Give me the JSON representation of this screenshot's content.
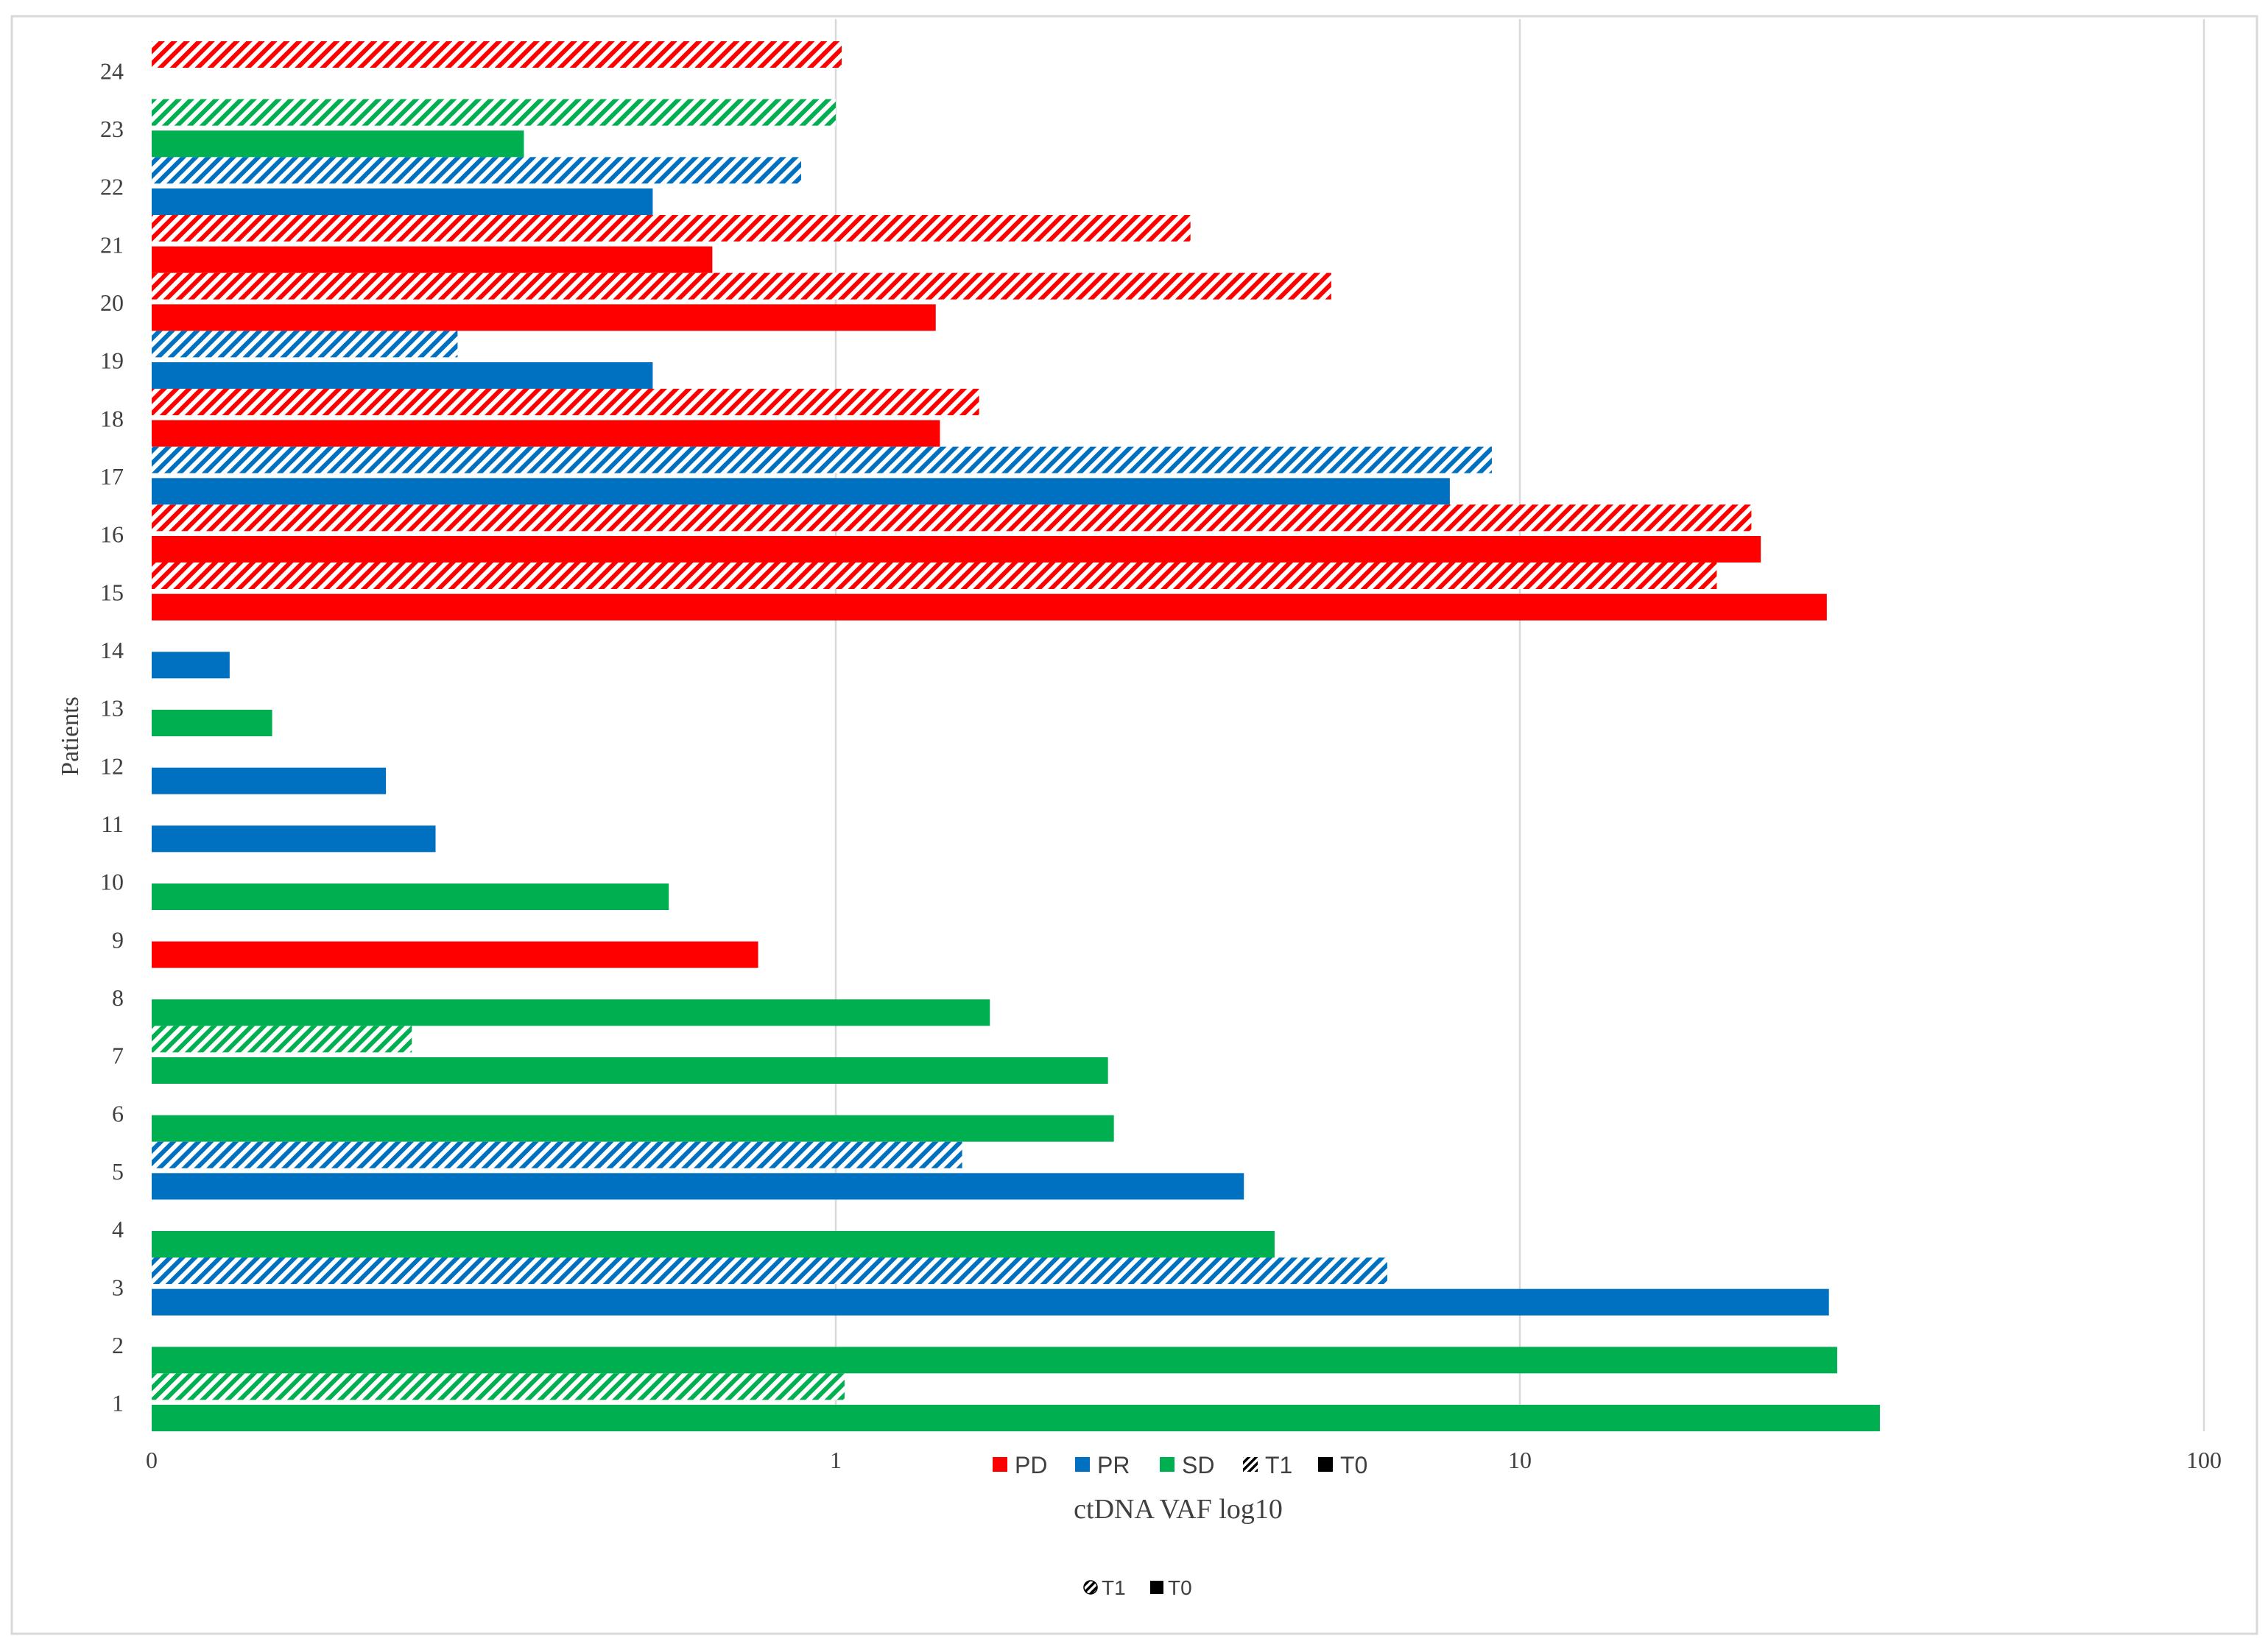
{
  "chart_data": {
    "type": "bar",
    "orientation": "horizontal",
    "xscale": "log10",
    "xlabel": "ctDNA VAF log10",
    "ylabel": "Patients",
    "xticks": [
      {
        "value": 0.1,
        "label": "0"
      },
      {
        "value": 1,
        "label": "1"
      },
      {
        "value": 10,
        "label": "10"
      },
      {
        "value": 100,
        "label": "100"
      }
    ],
    "xlim": [
      0.1,
      100
    ],
    "gridlines": true,
    "categories": [
      "1",
      "2",
      "3",
      "4",
      "5",
      "6",
      "7",
      "8",
      "9",
      "10",
      "11",
      "12",
      "13",
      "14",
      "15",
      "16",
      "17",
      "18",
      "19",
      "20",
      "21",
      "22",
      "23",
      "24"
    ],
    "colors": {
      "PD": "#ff0000",
      "PR": "#0070c0",
      "SD": "#00b050"
    },
    "bars": [
      {
        "patient": "1",
        "group": "SD",
        "timepoint": "T0",
        "value": 33.6
      },
      {
        "patient": "1",
        "group": "SD",
        "timepoint": "T1",
        "value": 1.03
      },
      {
        "patient": "2",
        "group": "SD",
        "timepoint": "T0",
        "value": 29.1
      },
      {
        "patient": "3",
        "group": "PR",
        "timepoint": "T0",
        "value": 28.3
      },
      {
        "patient": "3",
        "group": "PR",
        "timepoint": "T1",
        "value": 6.4
      },
      {
        "patient": "4",
        "group": "SD",
        "timepoint": "T0",
        "value": 4.38
      },
      {
        "patient": "5",
        "group": "PR",
        "timepoint": "T0",
        "value": 3.95
      },
      {
        "patient": "5",
        "group": "PR",
        "timepoint": "T1",
        "value": 1.53
      },
      {
        "patient": "6",
        "group": "SD",
        "timepoint": "T0",
        "value": 2.55
      },
      {
        "patient": "7",
        "group": "SD",
        "timepoint": "T0",
        "value": 2.5
      },
      {
        "patient": "7",
        "group": "SD",
        "timepoint": "T1",
        "value": 0.24
      },
      {
        "patient": "8",
        "group": "SD",
        "timepoint": "T0",
        "value": 1.68
      },
      {
        "patient": "9",
        "group": "PD",
        "timepoint": "T0",
        "value": 0.77
      },
      {
        "patient": "10",
        "group": "SD",
        "timepoint": "T0",
        "value": 0.57
      },
      {
        "patient": "11",
        "group": "PR",
        "timepoint": "T0",
        "value": 0.26
      },
      {
        "patient": "12",
        "group": "PR",
        "timepoint": "T0",
        "value": 0.22
      },
      {
        "patient": "13",
        "group": "SD",
        "timepoint": "T0",
        "value": 0.15
      },
      {
        "patient": "14",
        "group": "PR",
        "timepoint": "T0",
        "value": 0.13
      },
      {
        "patient": "15",
        "group": "PD",
        "timepoint": "T0",
        "value": 28.1
      },
      {
        "patient": "15",
        "group": "PD",
        "timepoint": "T1",
        "value": 19.4
      },
      {
        "patient": "16",
        "group": "PD",
        "timepoint": "T0",
        "value": 22.5
      },
      {
        "patient": "16",
        "group": "PD",
        "timepoint": "T1",
        "value": 21.8
      },
      {
        "patient": "17",
        "group": "PR",
        "timepoint": "T0",
        "value": 7.9
      },
      {
        "patient": "17",
        "group": "PR",
        "timepoint": "T1",
        "value": 9.1
      },
      {
        "patient": "18",
        "group": "PD",
        "timepoint": "T0",
        "value": 1.42
      },
      {
        "patient": "18",
        "group": "PD",
        "timepoint": "T1",
        "value": 1.62
      },
      {
        "patient": "19",
        "group": "PR",
        "timepoint": "T0",
        "value": 0.54
      },
      {
        "patient": "19",
        "group": "PR",
        "timepoint": "T1",
        "value": 0.28
      },
      {
        "patient": "20",
        "group": "PD",
        "timepoint": "T0",
        "value": 1.4
      },
      {
        "patient": "20",
        "group": "PD",
        "timepoint": "T1",
        "value": 5.3
      },
      {
        "patient": "21",
        "group": "PD",
        "timepoint": "T0",
        "value": 0.66
      },
      {
        "patient": "21",
        "group": "PD",
        "timepoint": "T1",
        "value": 3.3
      },
      {
        "patient": "22",
        "group": "PR",
        "timepoint": "T0",
        "value": 0.54
      },
      {
        "patient": "22",
        "group": "PR",
        "timepoint": "T1",
        "value": 0.89
      },
      {
        "patient": "23",
        "group": "SD",
        "timepoint": "T0",
        "value": 0.35
      },
      {
        "patient": "23",
        "group": "SD",
        "timepoint": "T1",
        "value": 1.0
      },
      {
        "patient": "24",
        "group": "PD",
        "timepoint": "T1",
        "value": 1.02
      }
    ],
    "legend": {
      "position": "bottom",
      "entries": [
        {
          "label": "PD",
          "kind": "solid",
          "group": "PD"
        },
        {
          "label": "PR",
          "kind": "solid",
          "group": "PR"
        },
        {
          "label": "SD",
          "kind": "solid",
          "group": "SD"
        },
        {
          "label": "T1",
          "kind": "hatch"
        },
        {
          "label": "T0",
          "kind": "solid-black"
        }
      ]
    },
    "secondary_legend": {
      "position": "bottom-center",
      "entries": [
        {
          "label": "T1",
          "kind": "hatch"
        },
        {
          "label": "T0",
          "kind": "solid-black"
        }
      ]
    }
  }
}
